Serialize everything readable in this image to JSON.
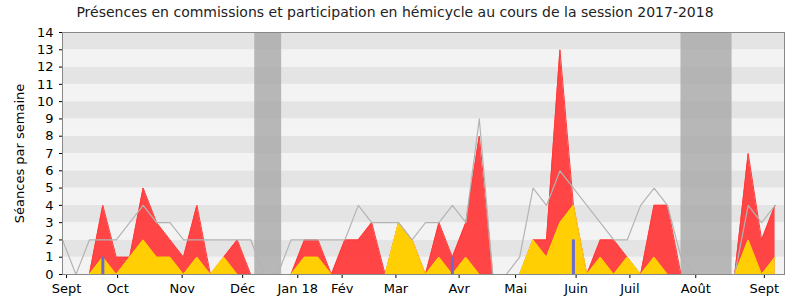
{
  "chart_data": {
    "type": "area",
    "title": "Présences en commissions et participation en hémicycle au cours de la session 2017-2018",
    "y_label": "Séances par semaine",
    "x": [
      0,
      1,
      2,
      3,
      4,
      5,
      6,
      7,
      8,
      9,
      10,
      11,
      12,
      13,
      14,
      15,
      16,
      17,
      18,
      19,
      20,
      21,
      22,
      23,
      24,
      25,
      26,
      27,
      28,
      29,
      30,
      31,
      32,
      33,
      34,
      35,
      36,
      37,
      38,
      39,
      40,
      41,
      42,
      43,
      44,
      45,
      46,
      47,
      48,
      49,
      50,
      51,
      52,
      53
    ],
    "series": [
      {
        "type": "area",
        "color": "#ff3b3b",
        "values": [
          null,
          null,
          0,
          4,
          1,
          1,
          5,
          3,
          2,
          1,
          4,
          0,
          1,
          2,
          0,
          null,
          null,
          0,
          2,
          2,
          0,
          2,
          2,
          3,
          0,
          3,
          2,
          0,
          3,
          1,
          3,
          8,
          0,
          0,
          0,
          2,
          2,
          13,
          4,
          0,
          2,
          2,
          1,
          0,
          4,
          4,
          0,
          null,
          null,
          null,
          0,
          7,
          2,
          4
        ]
      },
      {
        "type": "area",
        "color": "#ffd700",
        "values": [
          null,
          null,
          0,
          1,
          0,
          1,
          2,
          1,
          1,
          0,
          1,
          0,
          1,
          0,
          0,
          null,
          null,
          0,
          1,
          1,
          0,
          0,
          0,
          0,
          0,
          3,
          2,
          0,
          1,
          0,
          1,
          0,
          0,
          0,
          0,
          2,
          1,
          3,
          4,
          0,
          1,
          0,
          1,
          0,
          1,
          0,
          0,
          null,
          null,
          null,
          0,
          2,
          0,
          1
        ]
      },
      {
        "type": "line",
        "color": "#b4b4b4",
        "values": [
          2,
          0,
          2,
          2,
          2,
          3,
          4,
          3,
          3,
          2,
          2,
          2,
          2,
          2,
          2,
          0,
          0,
          2,
          2,
          2,
          2,
          2,
          4,
          3,
          3,
          3,
          2,
          3,
          3,
          4,
          3,
          9,
          0,
          0,
          1,
          5,
          4,
          6,
          5,
          4,
          3,
          2,
          2,
          4,
          5,
          4,
          1,
          0,
          0,
          0,
          0,
          4,
          3,
          4
        ]
      },
      {
        "type": "bar",
        "color": "#6a6ad0",
        "values": [
          null,
          null,
          null,
          1,
          null,
          null,
          null,
          null,
          null,
          null,
          null,
          null,
          null,
          null,
          null,
          null,
          null,
          null,
          null,
          null,
          null,
          null,
          null,
          null,
          null,
          null,
          null,
          null,
          null,
          1,
          null,
          null,
          null,
          null,
          null,
          null,
          null,
          null,
          2,
          null,
          null,
          null,
          null,
          null,
          null,
          null,
          null,
          null,
          null,
          null,
          null,
          null,
          null,
          null
        ]
      }
    ],
    "shaded_ranges": [
      [
        14.3,
        16.3
      ],
      [
        46,
        49.8
      ]
    ],
    "xlim": [
      0,
      53.7
    ],
    "xticks": [
      {
        "value": 0.3,
        "label": "Sept"
      },
      {
        "value": 4.1,
        "label": "Oct"
      },
      {
        "value": 8.9,
        "label": "Nov"
      },
      {
        "value": 13.4,
        "label": "Déc"
      },
      {
        "value": 17.5,
        "label": "Jan 18"
      },
      {
        "value": 20.8,
        "label": "Fév"
      },
      {
        "value": 24.8,
        "label": "Mar"
      },
      {
        "value": 29.5,
        "label": "Avr"
      },
      {
        "value": 33.7,
        "label": "Mai"
      },
      {
        "value": 38.2,
        "label": "Juin"
      },
      {
        "value": 42.2,
        "label": "Juil"
      },
      {
        "value": 47.1,
        "label": "Août"
      },
      {
        "value": 52.2,
        "label": "Sept"
      }
    ],
    "ylim": [
      0,
      14
    ],
    "yticks": [
      0,
      1,
      2,
      3,
      4,
      5,
      6,
      7,
      8,
      9,
      10,
      11,
      12,
      13,
      14
    ],
    "grid": true
  }
}
